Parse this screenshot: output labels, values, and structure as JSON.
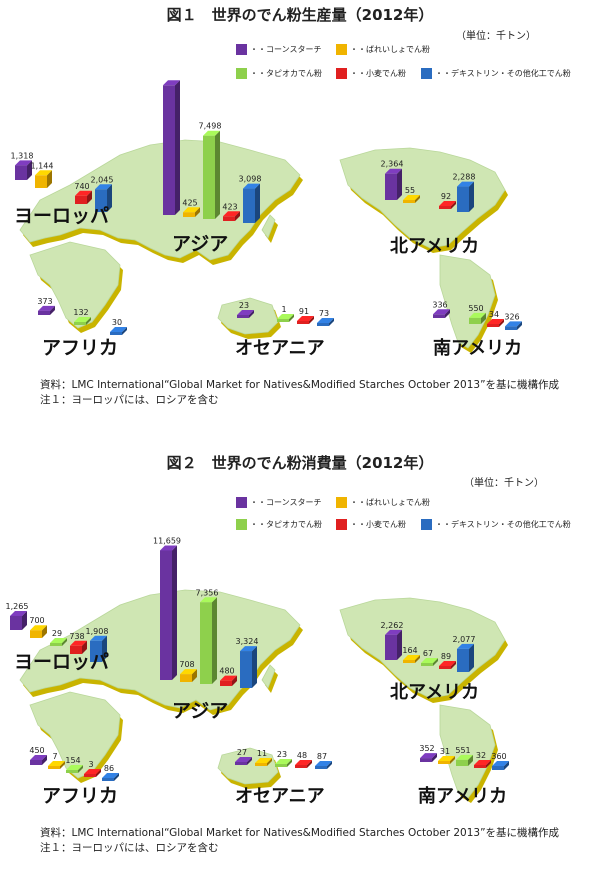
{
  "colors": {
    "cornstarch": "#6a33a0",
    "potato": "#f0b400",
    "tapioca": "#8ed04c",
    "wheat": "#e02020",
    "dextrin": "#2a6cc0",
    "land": "#cfe6b3",
    "land_edge": "#c9b400"
  },
  "legend": [
    {
      "key": "cornstarch",
      "label": "・・コーンスターチ"
    },
    {
      "key": "potato",
      "label": "・・ばれいしょでん粉"
    },
    {
      "key": "tapioca",
      "label": "・・タピオカでん粉"
    },
    {
      "key": "wheat",
      "label": "・・小麦でん粉"
    },
    {
      "key": "dextrin",
      "label": "・・デキストリン・その他化工でん粉"
    }
  ],
  "unit": "（単位：千トン）",
  "notes": {
    "source": "資料：LMC International“Global Market for Natives&Modified Starches October 2013”を基に機構作成",
    "note1": "注１：ヨーロッパには、ロシアを含む"
  },
  "chart_data": [
    {
      "type": "bar",
      "title": "図１　世界のでん粉生産量（2012年）",
      "series_keys": [
        "cornstarch",
        "potato",
        "tapioca",
        "wheat",
        "dextrin"
      ],
      "regions": [
        {
          "name": "ヨーロッパ",
          "values": [
            1318,
            1144,
            null,
            740,
            2045
          ]
        },
        {
          "name": "アジア",
          "values": [
            11674,
            425,
            7498,
            423,
            3098
          ]
        },
        {
          "name": "北アメリカ",
          "values": [
            2364,
            55,
            null,
            92,
            2288
          ]
        },
        {
          "name": "アフリカ",
          "values": [
            373,
            null,
            132,
            null,
            30
          ]
        },
        {
          "name": "オセアニア",
          "values": [
            23,
            null,
            1,
            91,
            73
          ]
        },
        {
          "name": "南アメリカ",
          "values": [
            336,
            null,
            550,
            34,
            326
          ]
        }
      ]
    },
    {
      "type": "bar",
      "title": "図２　世界のでん粉消費量（2012年）",
      "series_keys": [
        "cornstarch",
        "potato",
        "tapioca",
        "wheat",
        "dextrin"
      ],
      "regions": [
        {
          "name": "ヨーロッパ",
          "values": [
            1265,
            700,
            29,
            738,
            1908
          ]
        },
        {
          "name": "アジア",
          "values": [
            11659,
            708,
            7356,
            480,
            3324
          ]
        },
        {
          "name": "北アメリカ",
          "values": [
            2262,
            164,
            67,
            89,
            2077
          ]
        },
        {
          "name": "アフリカ",
          "values": [
            450,
            7,
            154,
            3,
            86
          ]
        },
        {
          "name": "オセアニア",
          "values": [
            27,
            11,
            23,
            48,
            87
          ]
        },
        {
          "name": "南アメリカ",
          "values": [
            352,
            31,
            551,
            32,
            360
          ]
        }
      ]
    }
  ]
}
